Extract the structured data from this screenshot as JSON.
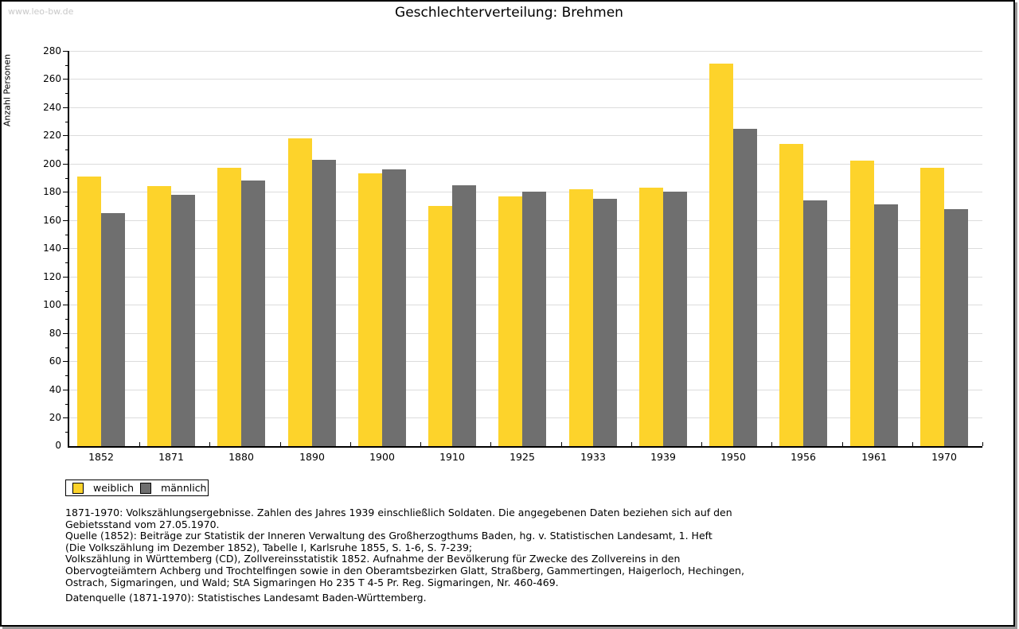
{
  "watermark": "www.leo-bw.de",
  "title": "Geschlechterverteilung: Brehmen",
  "chart_data": {
    "type": "bar",
    "title": "Geschlechterverteilung: Brehmen",
    "xlabel": "",
    "ylabel": "Anzahl Personen",
    "ylim": [
      0,
      280
    ],
    "ytick_step": 20,
    "ytick_minor_step": 10,
    "grid": true,
    "legend_position": "bottom-left",
    "categories": [
      "1852",
      "1871",
      "1880",
      "1890",
      "1900",
      "1910",
      "1925",
      "1933",
      "1939",
      "1950",
      "1956",
      "1961",
      "1970"
    ],
    "series": [
      {
        "name": "weiblich",
        "color": "#FDD32B",
        "values": [
          191,
          184,
          197,
          218,
          193,
          170,
          177,
          182,
          183,
          271,
          214,
          202,
          197
        ]
      },
      {
        "name": "männlich",
        "color": "#6F6F6F",
        "values": [
          165,
          178,
          188,
          203,
          196,
          185,
          180,
          175,
          180,
          225,
          174,
          171,
          168
        ]
      }
    ]
  },
  "colors": {
    "weiblich": "#FDD32B",
    "männlich": "#6F6F6F",
    "gridline": "#DCDCDC",
    "axis": "#000000",
    "watermark": "#C9C9C9"
  },
  "legend": {
    "items": [
      {
        "label": "weiblich",
        "color": "#FDD32B"
      },
      {
        "label": "männlich",
        "color": "#6F6F6F"
      }
    ]
  },
  "footnote_lines": [
    "1871-1970: Volkszählungsergebnisse. Zahlen des Jahres 1939 einschließlich Soldaten. Die angegebenen Daten beziehen sich auf den",
    "Gebietsstand vom 27.05.1970.",
    "Quelle (1852): Beiträge zur Statistik der Inneren Verwaltung des Großherzogthums Baden, hg. v. Statistischen Landesamt, 1. Heft",
    "(Die Volkszählung im Dezember 1852), Tabelle I, Karlsruhe 1855, S. 1-6, S. 7-239;",
    "Volkszählung in Württemberg (CD), Zollvereinsstatistik 1852. Aufnahme der Bevölkerung für Zwecke des Zollvereins in den",
    "Obervogteiämtern Achberg und Trochtelfingen sowie in den Oberamtsbezirken Glatt, Straßberg, Gammertingen, Haigerloch, Hechingen,",
    "Ostrach, Sigmaringen, und Wald; StA Sigmaringen Ho 235 T 4-5 Pr. Reg. Sigmaringen, Nr. 460-469."
  ],
  "source_line": "Datenquelle (1871-1970): Statistisches Landesamt Baden-Württemberg."
}
